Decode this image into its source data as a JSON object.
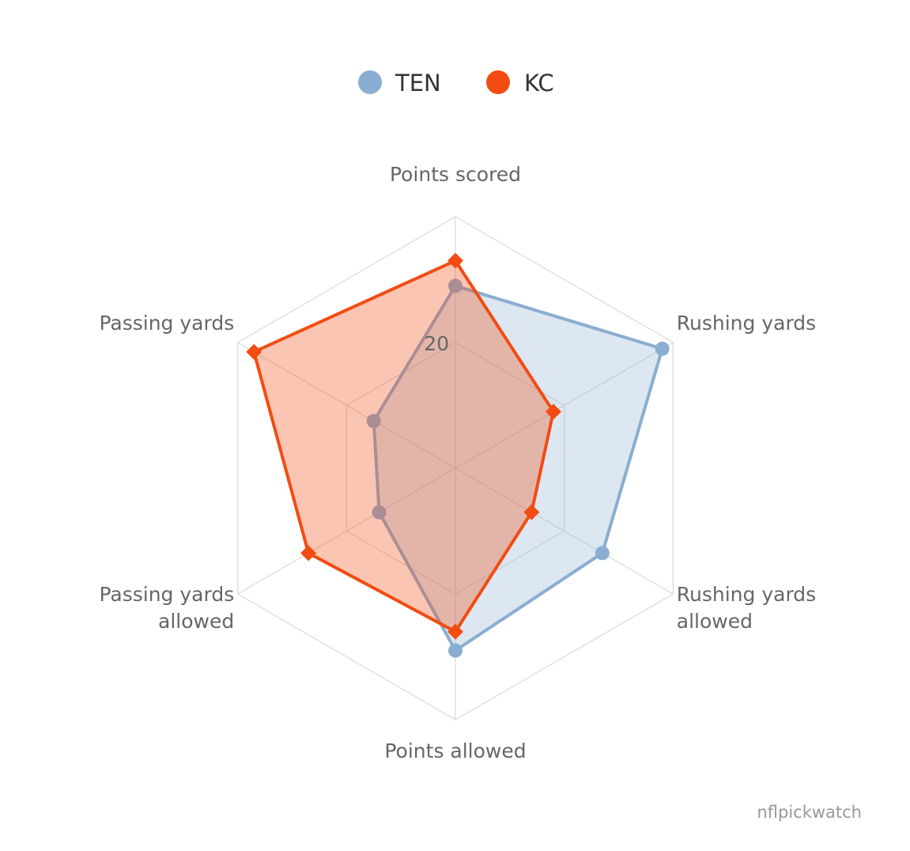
{
  "chart_data": {
    "type": "radar",
    "categories": [
      [
        "Points scored"
      ],
      [
        "Rushing yards"
      ],
      [
        "Rushing yards",
        "allowed"
      ],
      [
        "Points allowed"
      ],
      [
        "Passing yards",
        "allowed"
      ],
      [
        "Passing yards"
      ]
    ],
    "rlim": [
      0,
      40
    ],
    "ticks": [
      20
    ],
    "grid": true,
    "legend_position": "top-center",
    "series": [
      {
        "name": "TEN",
        "values": [
          29,
          38,
          27,
          29,
          14,
          15
        ],
        "color": "#8aaed1",
        "fill_opacity": 0.3,
        "marker": "circle"
      },
      {
        "name": "KC",
        "values": [
          33,
          18,
          14,
          26,
          27,
          37
        ],
        "color": "#f24c12",
        "fill_opacity": 0.32,
        "marker": "diamond"
      }
    ]
  },
  "credit": "nflpickwatch"
}
